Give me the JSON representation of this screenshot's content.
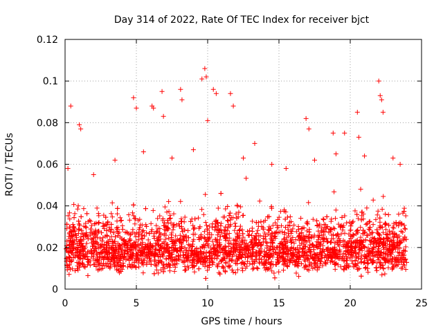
{
  "chart_data": {
    "type": "scatter",
    "title": "Day 314 of 2022, Rate Of TEC Index for receiver bjct",
    "xlabel": "GPS time / hours",
    "ylabel": "ROTI / TECUs",
    "xlim": [
      0,
      25
    ],
    "ylim": [
      0,
      0.12
    ],
    "xticks": [
      0,
      5,
      10,
      15,
      20,
      25
    ],
    "yticks": [
      0,
      0.02,
      0.04,
      0.06,
      0.08,
      0.1,
      0.12
    ],
    "xtick_labels": [
      "0",
      "5",
      "10",
      "15",
      "20",
      "25"
    ],
    "ytick_labels": [
      "0",
      "0.02",
      "0.04",
      "0.06",
      "0.08",
      "0.1",
      "0.12"
    ],
    "grid": true,
    "marker": "plus",
    "color": "#ff0000",
    "series": [
      {
        "x": [
          0.4,
          1.0,
          1.1,
          4.8,
          5.0,
          6.1,
          6.2,
          6.8,
          6.9,
          8.1,
          8.2,
          9.6,
          9.8,
          9.9,
          10.0,
          10.4,
          10.6,
          11.6,
          11.8,
          13.3,
          16.9,
          17.1,
          18.8,
          19.6,
          20.5,
          20.6,
          22.0,
          22.1,
          22.2,
          22.3,
          0.2,
          2.0,
          3.5,
          5.5,
          7.5,
          9.0,
          12.5,
          14.5,
          15.5,
          17.5,
          19.0,
          21.0,
          23.0,
          23.5
        ],
        "y": [
          0.088,
          0.079,
          0.077,
          0.092,
          0.087,
          0.088,
          0.087,
          0.095,
          0.083,
          0.096,
          0.091,
          0.101,
          0.106,
          0.102,
          0.081,
          0.096,
          0.094,
          0.094,
          0.088,
          0.07,
          0.082,
          0.077,
          0.075,
          0.075,
          0.085,
          0.073,
          0.1,
          0.093,
          0.091,
          0.085,
          0.058,
          0.055,
          0.062,
          0.066,
          0.063,
          0.067,
          0.063,
          0.06,
          0.058,
          0.062,
          0.065,
          0.064,
          0.063,
          0.06
        ]
      }
    ]
  }
}
